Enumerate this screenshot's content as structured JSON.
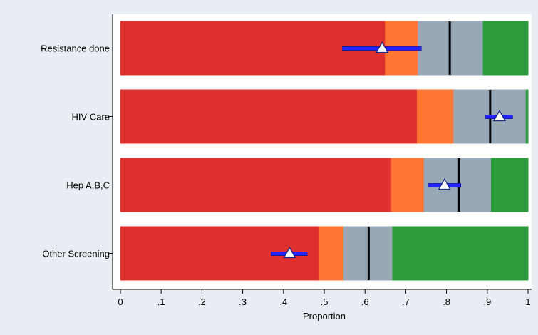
{
  "chart_data": {
    "type": "bar",
    "subtype": "stacked-horizontal-bullet",
    "xlabel": "Proportion",
    "xlim": [
      0,
      1
    ],
    "x_ticks": [
      "0",
      ".1",
      ".2",
      ".3",
      ".4",
      ".5",
      ".6",
      ".7",
      ".8",
      ".9",
      "1"
    ],
    "grid": false,
    "categories": [
      "Resistance done",
      "HIV Care",
      "Hep A,B,C",
      "Other Screening"
    ],
    "band_colors": [
      "#e03131",
      "#ff7733",
      "#97a8b7",
      "#2b9a3a"
    ],
    "bands": [
      [
        0,
        0.65,
        0.73,
        0.89,
        1.0
      ],
      [
        0,
        0.728,
        0.818,
        0.995,
        1.0
      ],
      [
        0,
        0.665,
        0.745,
        0.91,
        1.0
      ],
      [
        0,
        0.488,
        0.548,
        0.668,
        1.0
      ]
    ],
    "target_lines": [
      0.808,
      0.907,
      0.831,
      0.609
    ],
    "target_line_color": "#000000",
    "points": [
      {
        "value": 0.642,
        "ci": [
          0.545,
          0.738
        ]
      },
      {
        "value": 0.93,
        "ci": [
          0.895,
          0.962
        ]
      },
      {
        "value": 0.795,
        "ci": [
          0.755,
          0.835
        ]
      },
      {
        "value": 0.415,
        "ci": [
          0.37,
          0.458
        ]
      }
    ],
    "ci_color": "#2323ff",
    "marker": "triangle"
  }
}
